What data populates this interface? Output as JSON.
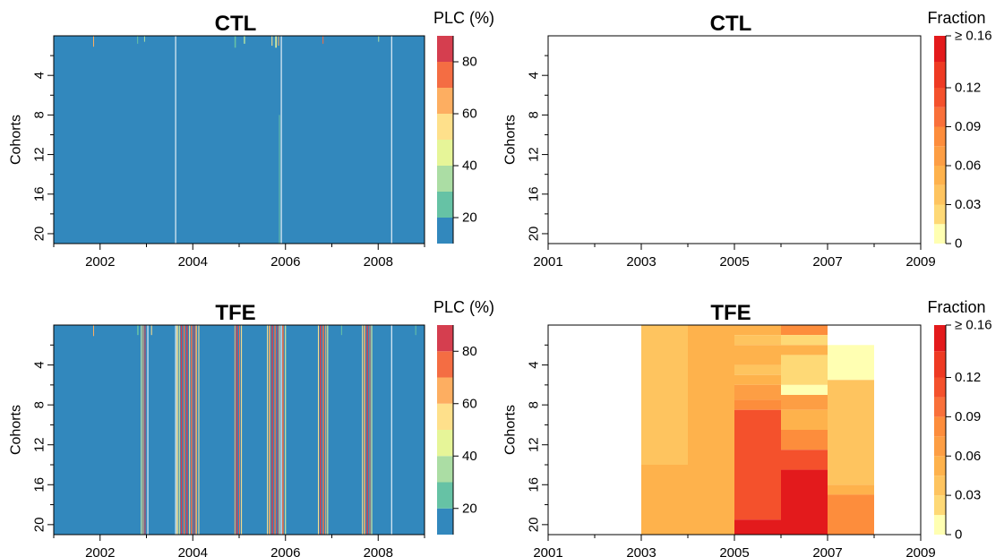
{
  "chart_data": [
    {
      "type": "heatmap",
      "title": "CTL",
      "ylabel": "Cohorts",
      "colorbar_title": "PLC (%)",
      "x_range": [
        2001,
        2009
      ],
      "x_ticks": [
        "2002",
        "2004",
        "2006",
        "2008"
      ],
      "y_range": [
        0,
        21
      ],
      "y_reversed": true,
      "y_ticks": [
        "4",
        "8",
        "12",
        "16",
        "20"
      ],
      "background_color": "#3288bd",
      "colorbar_levels": [
        10,
        20,
        30,
        40,
        50,
        60,
        70,
        80,
        90
      ],
      "colorbar_ticks": [
        "20",
        "40",
        "60",
        "80"
      ],
      "colorbar_colors": [
        "#3288bd",
        "#66c2a5",
        "#abdda4",
        "#e6f598",
        "#fee08b",
        "#fdae61",
        "#f46d43",
        "#d53e4f"
      ],
      "stripes": [
        {
          "x": 2001.85,
          "w": 0.02,
          "y0": 0,
          "y1": 1.1,
          "color": "#fdae61"
        },
        {
          "x": 2002.8,
          "w": 0.02,
          "y0": 0,
          "y1": 0.8,
          "color": "#66c2a5"
        },
        {
          "x": 2002.95,
          "w": 0.02,
          "y0": 0,
          "y1": 0.6,
          "color": "#abdda4"
        },
        {
          "x": 2003.62,
          "w": 0.02,
          "y0": 0,
          "y1": 21,
          "color": "#ffffff"
        },
        {
          "x": 2004.9,
          "w": 0.03,
          "y0": 0,
          "y1": 1.2,
          "color": "#66c2a5"
        },
        {
          "x": 2005.1,
          "w": 0.03,
          "y0": 0,
          "y1": 0.8,
          "color": "#abdda4"
        },
        {
          "x": 2005.7,
          "w": 0.02,
          "y0": 0,
          "y1": 1.0,
          "color": "#fee08b"
        },
        {
          "x": 2005.78,
          "w": 0.03,
          "y0": 0,
          "y1": 1.2,
          "color": "#e6f598"
        },
        {
          "x": 2005.84,
          "w": 0.02,
          "y0": 0,
          "y1": 1.0,
          "color": "#fdae61"
        },
        {
          "x": 2005.86,
          "w": 0.02,
          "y0": 8.0,
          "y1": 21,
          "color": "#66c2a5"
        },
        {
          "x": 2005.9,
          "w": 0.02,
          "y0": 0,
          "y1": 21,
          "color": "#ffffff"
        },
        {
          "x": 2006.8,
          "w": 0.02,
          "y0": 0,
          "y1": 0.8,
          "color": "#f46d43"
        },
        {
          "x": 2008.0,
          "w": 0.02,
          "y0": 0,
          "y1": 0.6,
          "color": "#abdda4"
        },
        {
          "x": 2008.28,
          "w": 0.02,
          "y0": 0,
          "y1": 21,
          "color": "#ffffff"
        }
      ]
    },
    {
      "type": "heatmap",
      "title": "CTL",
      "ylabel": "Cohorts",
      "colorbar_title": "Fraction",
      "x_range": [
        2001,
        2009
      ],
      "x_ticks": [
        "2001",
        "2003",
        "2005",
        "2007",
        "2009"
      ],
      "y_range": [
        0,
        21
      ],
      "y_reversed": true,
      "y_ticks": [
        "4",
        "8",
        "12",
        "16",
        "20"
      ],
      "background_color": "#ffffff",
      "colorbar_levels": [
        0,
        0.015,
        0.03,
        0.045,
        0.06,
        0.075,
        0.09,
        0.105,
        0.12,
        0.14,
        0.16
      ],
      "colorbar_ticks": [
        "0",
        "0.03",
        "0.06",
        "0.09",
        "0.12",
        "≥ 0.16"
      ],
      "colorbar_colors": [
        "#ffffb2",
        "#fed976",
        "#fec45f",
        "#feb24c",
        "#fd9e44",
        "#fd8d3c",
        "#f9703a",
        "#f4512c",
        "#ee3a23",
        "#e31a1c"
      ],
      "cells": []
    },
    {
      "type": "heatmap",
      "title": "TFE",
      "ylabel": "Cohorts",
      "colorbar_title": "PLC (%)",
      "x_range": [
        2001,
        2009
      ],
      "x_ticks": [
        "2002",
        "2004",
        "2006",
        "2008"
      ],
      "y_range": [
        0,
        21
      ],
      "y_reversed": true,
      "y_ticks": [
        "4",
        "8",
        "12",
        "16",
        "20"
      ],
      "background_color": "#3288bd",
      "colorbar_levels": [
        10,
        20,
        30,
        40,
        50,
        60,
        70,
        80,
        90
      ],
      "colorbar_ticks": [
        "20",
        "40",
        "60",
        "80"
      ],
      "colorbar_colors": [
        "#3288bd",
        "#66c2a5",
        "#abdda4",
        "#e6f598",
        "#fee08b",
        "#fdae61",
        "#f46d43",
        "#d53e4f"
      ],
      "stripes": [
        {
          "x": 2001.85,
          "w": 0.02,
          "y0": 0,
          "y1": 1.1,
          "color": "#fdae61"
        },
        {
          "x": 2002.8,
          "w": 0.03,
          "y0": 0,
          "y1": 1.0,
          "color": "#66c2a5"
        },
        {
          "x": 2002.88,
          "w": 0.02,
          "y0": 0,
          "y1": 21,
          "color": "#e6f598"
        },
        {
          "x": 2002.92,
          "w": 0.02,
          "y0": 0,
          "y1": 21,
          "color": "#fdae61"
        },
        {
          "x": 2002.96,
          "w": 0.02,
          "y0": 0,
          "y1": 21,
          "color": "#d53e4f"
        },
        {
          "x": 2003.02,
          "w": 0.02,
          "y0": 0,
          "y1": 21,
          "color": "#ffffff"
        },
        {
          "x": 2003.1,
          "w": 0.02,
          "y0": 0,
          "y1": 1.0,
          "color": "#fee08b"
        },
        {
          "x": 2003.62,
          "w": 0.02,
          "y0": 0,
          "y1": 21,
          "color": "#ffffff"
        },
        {
          "x": 2003.65,
          "w": 0.03,
          "y0": 0,
          "y1": 21,
          "color": "#fee08b"
        },
        {
          "x": 2003.7,
          "w": 0.02,
          "y0": 0,
          "y1": 21,
          "color": "#e6f598"
        },
        {
          "x": 2003.74,
          "w": 0.03,
          "y0": 0,
          "y1": 21,
          "color": "#d53e4f"
        },
        {
          "x": 2003.8,
          "w": 0.03,
          "y0": 0,
          "y1": 21,
          "color": "#f46d43"
        },
        {
          "x": 2003.86,
          "w": 0.03,
          "y0": 0,
          "y1": 21,
          "color": "#d53e4f"
        },
        {
          "x": 2003.92,
          "w": 0.02,
          "y0": 0,
          "y1": 21,
          "color": "#fee08b"
        },
        {
          "x": 2003.96,
          "w": 0.03,
          "y0": 0,
          "y1": 21,
          "color": "#f46d43"
        },
        {
          "x": 2004.02,
          "w": 0.02,
          "y0": 0,
          "y1": 21,
          "color": "#d53e4f"
        },
        {
          "x": 2004.06,
          "w": 0.03,
          "y0": 0,
          "y1": 21,
          "color": "#fdae61"
        },
        {
          "x": 2004.12,
          "w": 0.02,
          "y0": 0,
          "y1": 21,
          "color": "#fee08b"
        },
        {
          "x": 2004.9,
          "w": 0.02,
          "y0": 0,
          "y1": 21,
          "color": "#fdae61"
        },
        {
          "x": 2004.94,
          "w": 0.03,
          "y0": 0,
          "y1": 21,
          "color": "#d53e4f"
        },
        {
          "x": 2005.0,
          "w": 0.02,
          "y0": 0,
          "y1": 21,
          "color": "#f46d43"
        },
        {
          "x": 2005.04,
          "w": 0.02,
          "y0": 0,
          "y1": 21,
          "color": "#fee08b"
        },
        {
          "x": 2005.6,
          "w": 0.02,
          "y0": 0,
          "y1": 21,
          "color": "#fee08b"
        },
        {
          "x": 2005.64,
          "w": 0.03,
          "y0": 0,
          "y1": 21,
          "color": "#fdae61"
        },
        {
          "x": 2005.7,
          "w": 0.03,
          "y0": 0,
          "y1": 21,
          "color": "#d53e4f"
        },
        {
          "x": 2005.76,
          "w": 0.03,
          "y0": 0,
          "y1": 21,
          "color": "#f46d43"
        },
        {
          "x": 2005.82,
          "w": 0.02,
          "y0": 0,
          "y1": 21,
          "color": "#d53e4f"
        },
        {
          "x": 2005.86,
          "w": 0.02,
          "y0": 0,
          "y1": 21,
          "color": "#fee08b"
        },
        {
          "x": 2005.9,
          "w": 0.02,
          "y0": 0,
          "y1": 21,
          "color": "#ffffff"
        },
        {
          "x": 2005.93,
          "w": 0.03,
          "y0": 0,
          "y1": 21,
          "color": "#f46d43"
        },
        {
          "x": 2005.99,
          "w": 0.02,
          "y0": 0,
          "y1": 21,
          "color": "#e6f598"
        },
        {
          "x": 2006.7,
          "w": 0.02,
          "y0": 0,
          "y1": 21,
          "color": "#fee08b"
        },
        {
          "x": 2006.74,
          "w": 0.03,
          "y0": 0,
          "y1": 21,
          "color": "#d53e4f"
        },
        {
          "x": 2006.8,
          "w": 0.03,
          "y0": 0,
          "y1": 21,
          "color": "#f46d43"
        },
        {
          "x": 2006.86,
          "w": 0.02,
          "y0": 0,
          "y1": 21,
          "color": "#fdae61"
        },
        {
          "x": 2006.9,
          "w": 0.02,
          "y0": 0,
          "y1": 21,
          "color": "#e6f598"
        },
        {
          "x": 2007.2,
          "w": 0.02,
          "y0": 0,
          "y1": 1.0,
          "color": "#66c2a5"
        },
        {
          "x": 2007.65,
          "w": 0.02,
          "y0": 0,
          "y1": 21,
          "color": "#fee08b"
        },
        {
          "x": 2007.69,
          "w": 0.03,
          "y0": 0,
          "y1": 21,
          "color": "#fdae61"
        },
        {
          "x": 2007.75,
          "w": 0.03,
          "y0": 0,
          "y1": 21,
          "color": "#d53e4f"
        },
        {
          "x": 2007.81,
          "w": 0.02,
          "y0": 0,
          "y1": 21,
          "color": "#f46d43"
        },
        {
          "x": 2007.85,
          "w": 0.02,
          "y0": 0,
          "y1": 21,
          "color": "#e6f598"
        },
        {
          "x": 2008.28,
          "w": 0.02,
          "y0": 0,
          "y1": 21,
          "color": "#ffffff"
        },
        {
          "x": 2008.8,
          "w": 0.02,
          "y0": 0,
          "y1": 1.0,
          "color": "#66c2a5"
        }
      ]
    },
    {
      "type": "heatmap",
      "title": "TFE",
      "ylabel": "Cohorts",
      "colorbar_title": "Fraction",
      "x_range": [
        2001,
        2009
      ],
      "x_ticks": [
        "2001",
        "2003",
        "2005",
        "2007",
        "2009"
      ],
      "y_range": [
        0,
        21
      ],
      "y_reversed": true,
      "y_ticks": [
        "4",
        "8",
        "12",
        "16",
        "20"
      ],
      "background_color": "#ffffff",
      "colorbar_levels": [
        0,
        0.015,
        0.03,
        0.045,
        0.06,
        0.075,
        0.09,
        0.105,
        0.12,
        0.14,
        0.16
      ],
      "colorbar_ticks": [
        "0",
        "0.03",
        "0.06",
        "0.09",
        "0.12",
        "≥ 0.16"
      ],
      "colorbar_colors": [
        "#ffffb2",
        "#fed976",
        "#fec45f",
        "#feb24c",
        "#fd9e44",
        "#fd8d3c",
        "#f9703a",
        "#f4512c",
        "#ee3a23",
        "#e31a1c"
      ],
      "cells": [
        {
          "x0": 2003,
          "x1": 2004,
          "y0": 0,
          "y1": 14,
          "value": 0.035
        },
        {
          "x0": 2003,
          "x1": 2004,
          "y0": 14,
          "y1": 21,
          "value": 0.05
        },
        {
          "x0": 2004,
          "x1": 2005,
          "y0": 0,
          "y1": 21,
          "value": 0.05
        },
        {
          "x0": 2005,
          "x1": 2006,
          "y0": 0,
          "y1": 1,
          "value": 0.05
        },
        {
          "x0": 2005,
          "x1": 2006,
          "y0": 1,
          "y1": 2,
          "value": 0.035
        },
        {
          "x0": 2005,
          "x1": 2006,
          "y0": 2,
          "y1": 4,
          "value": 0.05
        },
        {
          "x0": 2005,
          "x1": 2006,
          "y0": 4,
          "y1": 5,
          "value": 0.035
        },
        {
          "x0": 2005,
          "x1": 2006,
          "y0": 5,
          "y1": 6,
          "value": 0.05
        },
        {
          "x0": 2005,
          "x1": 2006,
          "y0": 6,
          "y1": 7.5,
          "value": 0.065
        },
        {
          "x0": 2005,
          "x1": 2006,
          "y0": 7.5,
          "y1": 8.5,
          "value": 0.08
        },
        {
          "x0": 2005,
          "x1": 2006,
          "y0": 8.5,
          "y1": 19.5,
          "value": 0.11
        },
        {
          "x0": 2005,
          "x1": 2006,
          "y0": 19.5,
          "y1": 21,
          "value": 0.16
        },
        {
          "x0": 2006,
          "x1": 2007,
          "y0": 0,
          "y1": 1,
          "value": 0.08
        },
        {
          "x0": 2006,
          "x1": 2007,
          "y0": 1,
          "y1": 2,
          "value": 0.025
        },
        {
          "x0": 2006,
          "x1": 2007,
          "y0": 2,
          "y1": 3,
          "value": 0.05
        },
        {
          "x0": 2006,
          "x1": 2007,
          "y0": 3,
          "y1": 6,
          "value": 0.025
        },
        {
          "x0": 2006,
          "x1": 2007,
          "y0": 6,
          "y1": 7,
          "value": 0.008
        },
        {
          "x0": 2006,
          "x1": 2007,
          "y0": 7,
          "y1": 8.5,
          "value": 0.065
        },
        {
          "x0": 2006,
          "x1": 2007,
          "y0": 8.5,
          "y1": 10.5,
          "value": 0.05
        },
        {
          "x0": 2006,
          "x1": 2007,
          "y0": 10.5,
          "y1": 12.5,
          "value": 0.08
        },
        {
          "x0": 2006,
          "x1": 2007,
          "y0": 12.5,
          "y1": 14.5,
          "value": 0.11
        },
        {
          "x0": 2006,
          "x1": 2007,
          "y0": 14.5,
          "y1": 21,
          "value": 0.16
        },
        {
          "x0": 2007,
          "x1": 2008,
          "y0": 2,
          "y1": 5.5,
          "value": 0.008
        },
        {
          "x0": 2007,
          "x1": 2008,
          "y0": 5.5,
          "y1": 16,
          "value": 0.035
        },
        {
          "x0": 2007,
          "x1": 2008,
          "y0": 16,
          "y1": 17,
          "value": 0.05
        },
        {
          "x0": 2007,
          "x1": 2008,
          "y0": 17,
          "y1": 21,
          "value": 0.08
        }
      ]
    }
  ]
}
